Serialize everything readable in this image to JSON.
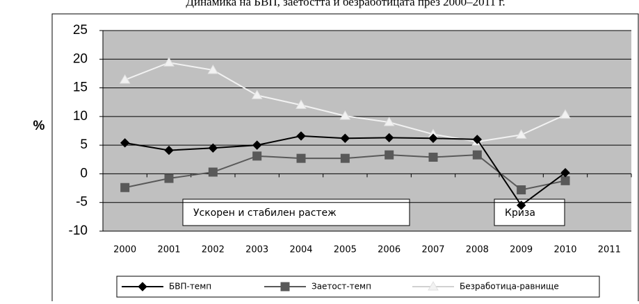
{
  "chart_data": {
    "type": "line",
    "title": "Динамика на БВП, заетостта и безработицата през 2000–2011 г.",
    "y_label": "%",
    "categories": [
      "2000",
      "2001",
      "2002",
      "2003",
      "2004",
      "2005",
      "2006",
      "2007",
      "2008",
      "2009",
      "2010",
      "2011"
    ],
    "series": [
      {
        "name": "БВП-темп",
        "color": "#000000",
        "marker": "diamond",
        "values": [
          5.4,
          4.1,
          4.5,
          5.0,
          6.6,
          6.2,
          6.3,
          6.2,
          6.0,
          -5.5,
          0.2,
          null
        ]
      },
      {
        "name": "Заетост-темп",
        "color": "#595959",
        "marker": "square",
        "values": [
          -2.4,
          -0.8,
          0.3,
          3.1,
          2.7,
          2.7,
          3.3,
          2.9,
          3.3,
          -2.8,
          -1.2,
          null
        ]
      },
      {
        "name": "Безработица-равнище",
        "color": "#f2f2f2",
        "marker": "triangle",
        "values": [
          16.4,
          19.4,
          18.1,
          13.7,
          12.0,
          10.1,
          9.0,
          6.9,
          5.6,
          6.8,
          10.3,
          null
        ]
      }
    ],
    "annotations": [
      "Ускорен и стабилен растеж",
      "Криза"
    ],
    "ylim": [
      -10,
      25
    ],
    "yticks": [
      -10,
      -5,
      0,
      5,
      10,
      15,
      20,
      25
    ],
    "grid": true
  }
}
